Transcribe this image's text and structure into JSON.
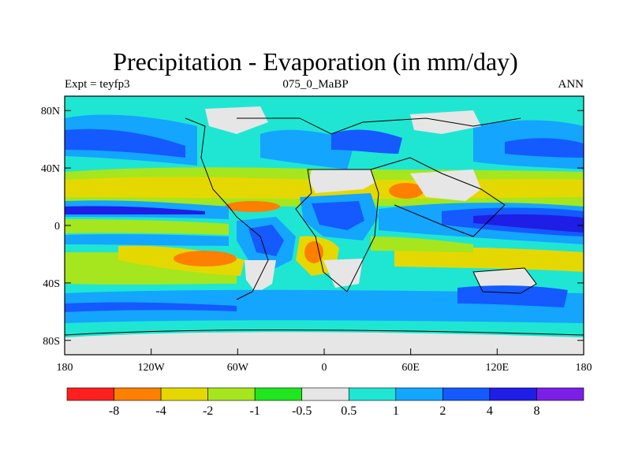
{
  "header": {
    "title": "Precipitation - Evaporation (in mm/day)",
    "left": "Expt = teyfp3",
    "center": "075_0_MaBP",
    "right": "ANN"
  },
  "axes": {
    "y_labels": [
      {
        "lat": 80,
        "text": "80N"
      },
      {
        "lat": 40,
        "text": "40N"
      },
      {
        "lat": 0,
        "text": "0"
      },
      {
        "lat": -40,
        "text": "40S"
      },
      {
        "lat": -80,
        "text": "80S"
      }
    ],
    "x_labels": [
      {
        "lon": -180,
        "text": "180"
      },
      {
        "lon": -120,
        "text": "120W"
      },
      {
        "lon": -60,
        "text": "60W"
      },
      {
        "lon": 0,
        "text": "0"
      },
      {
        "lon": 60,
        "text": "60E"
      },
      {
        "lon": 120,
        "text": "120E"
      },
      {
        "lon": 180,
        "text": "180"
      }
    ]
  },
  "colorbar": {
    "colors": [
      "#ff1f1f",
      "#ff7f00",
      "#e5d800",
      "#a5e61e",
      "#1fe61f",
      "#e6e6e6",
      "#1fe6d2",
      "#14a5ff",
      "#145aff",
      "#1e1ee6",
      "#7b1fe6"
    ],
    "labels": [
      "-8",
      "-4",
      "-2",
      "-1",
      "-0.5",
      "0.5",
      "1",
      "2",
      "4",
      "8"
    ]
  }
}
